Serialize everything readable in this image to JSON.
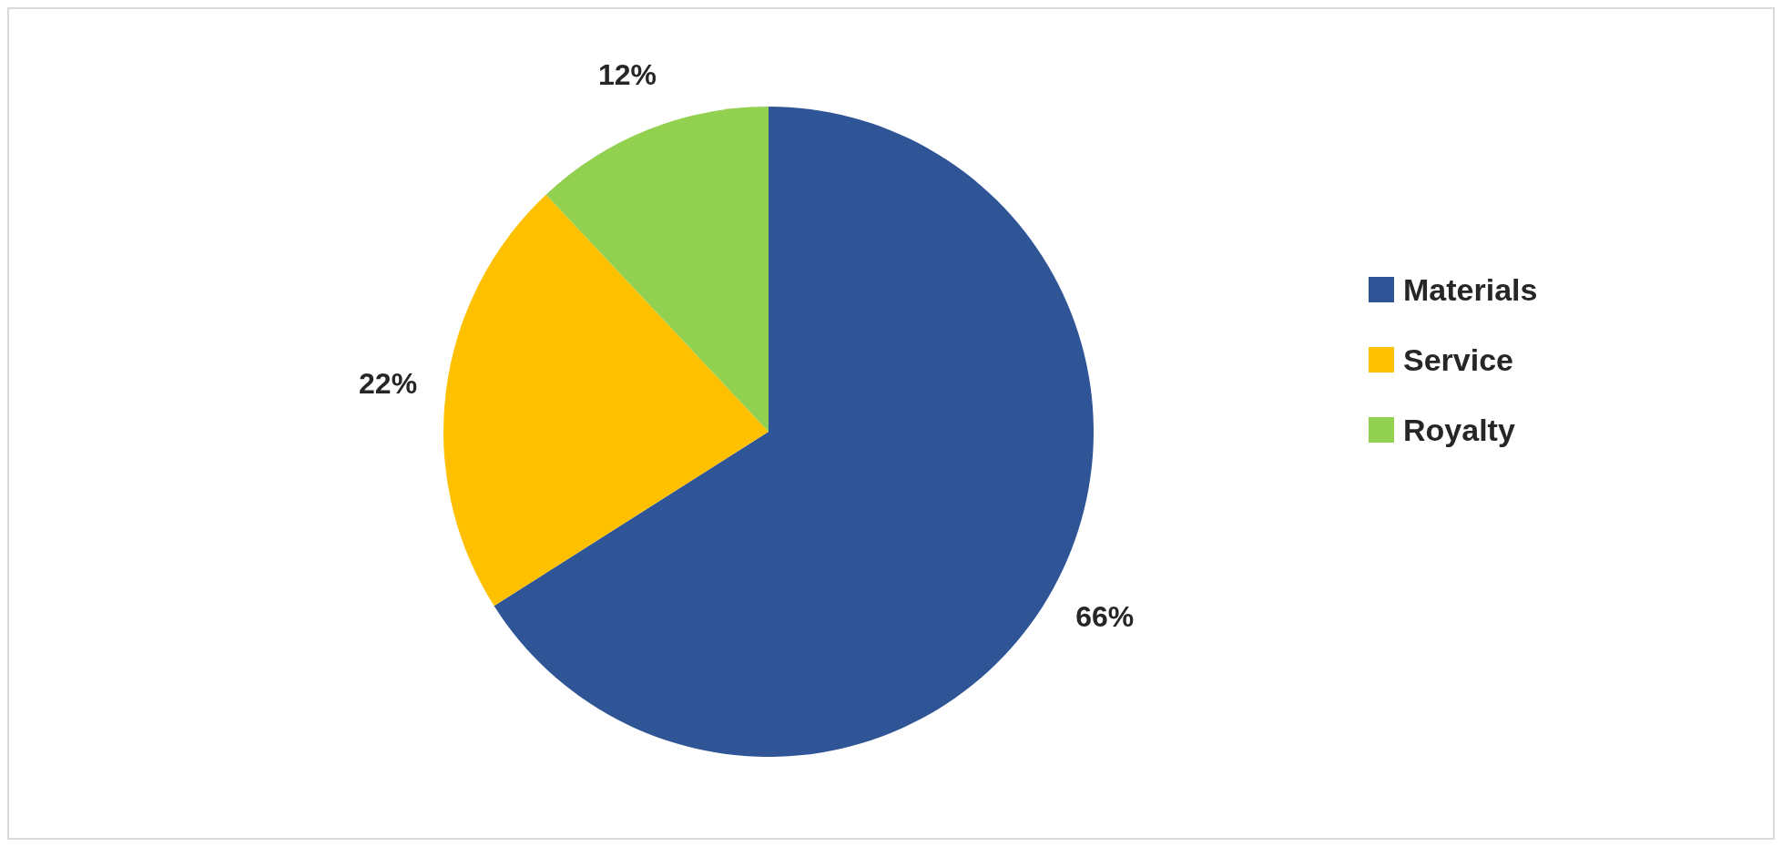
{
  "chart_data": {
    "type": "pie",
    "categories": [
      "Materials",
      "Service",
      "Royalty"
    ],
    "values": [
      66,
      22,
      12
    ],
    "colors": [
      "#2f5597",
      "#ffc000",
      "#92d050"
    ],
    "value_labels": [
      "66%",
      "22%",
      "12%"
    ],
    "legend": "right"
  }
}
